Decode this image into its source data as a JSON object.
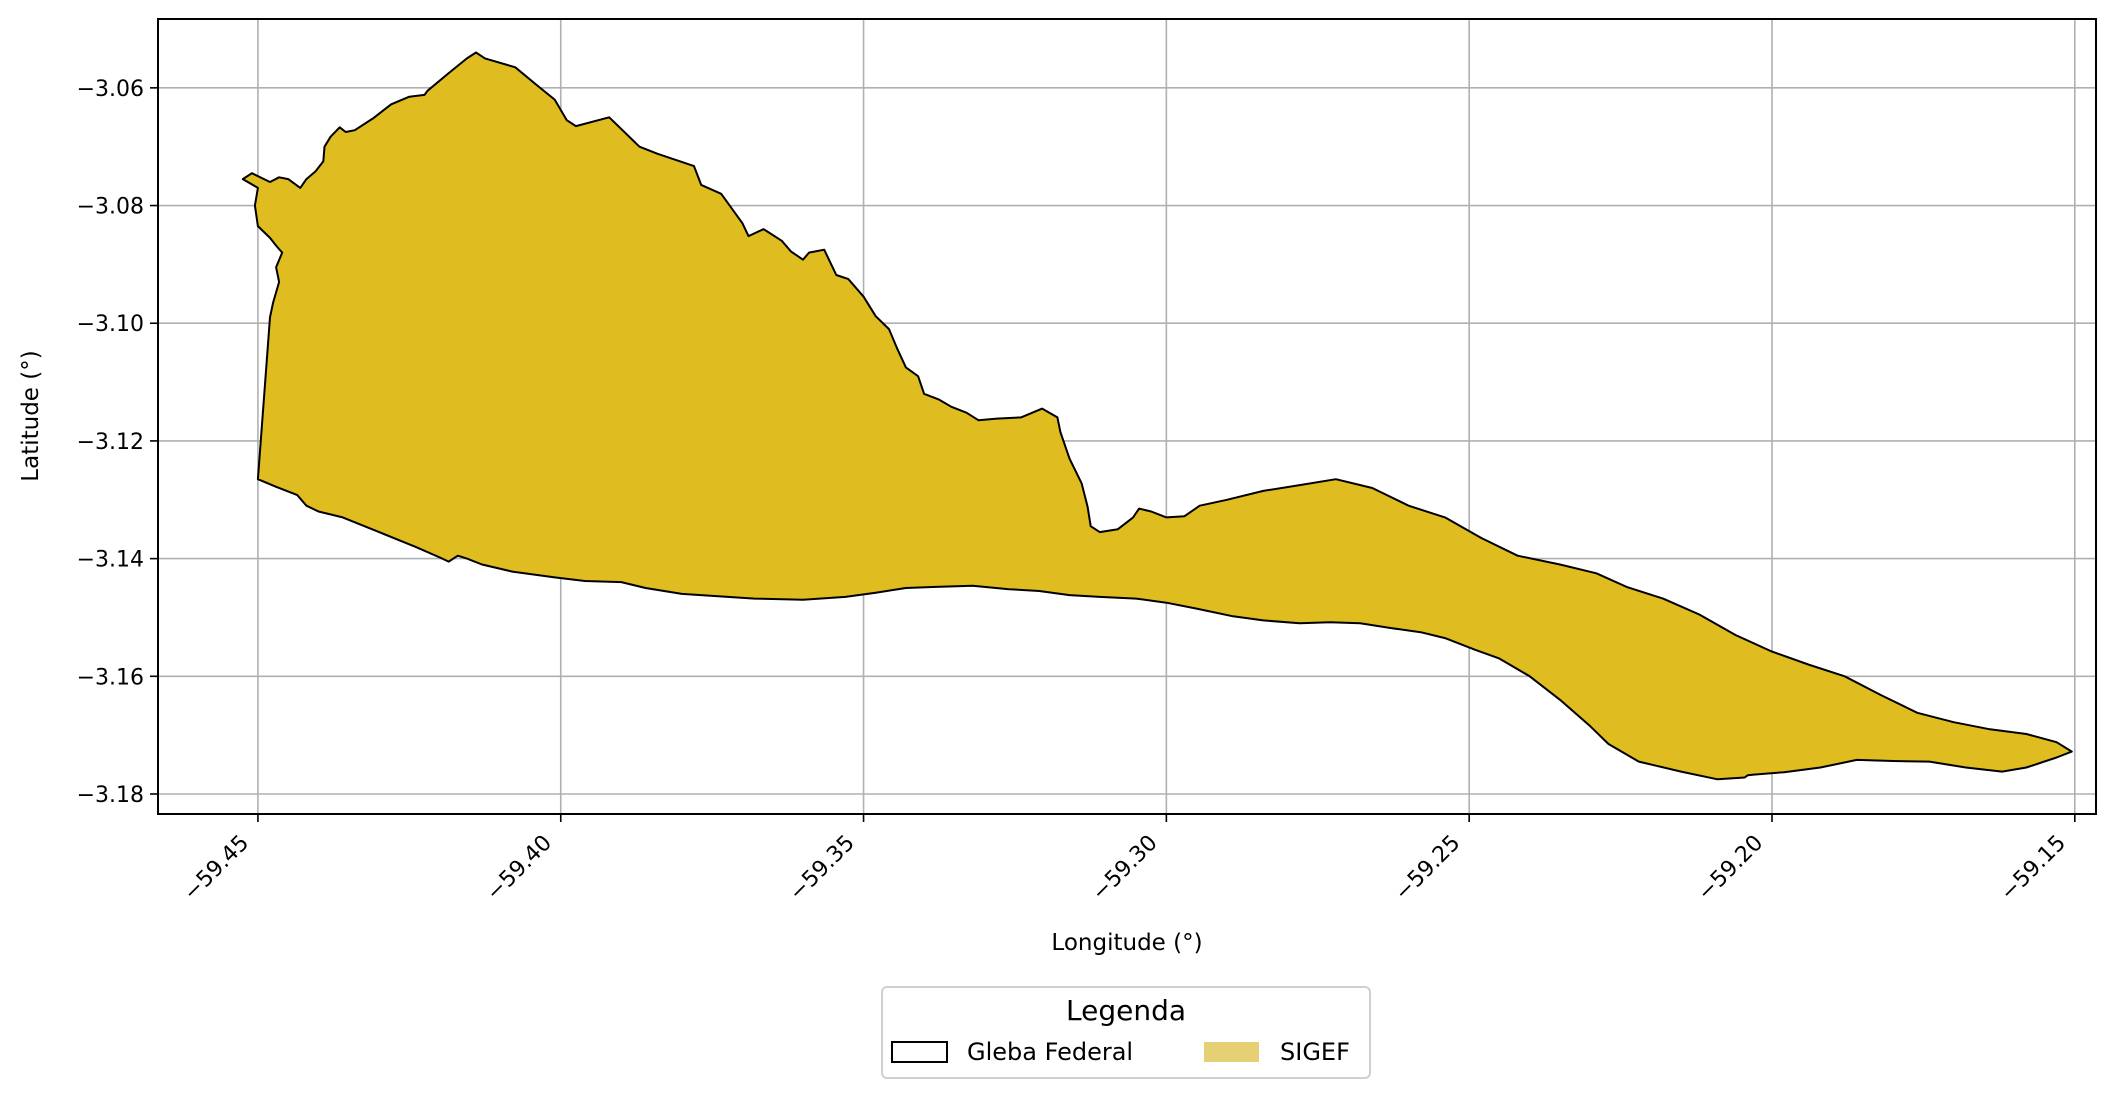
{
  "chart_data": {
    "type": "map",
    "xlabel": "Longitude (°)",
    "ylabel": "Latitude (°)",
    "xlim": [
      -59.4665,
      -59.1465
    ],
    "ylim": [
      -3.1834,
      -3.0483
    ],
    "x_ticks": [
      -59.45,
      -59.4,
      -59.35,
      -59.3,
      -59.25,
      -59.2,
      -59.15
    ],
    "x_tick_labels": [
      "−59.45",
      "−59.40",
      "−59.35",
      "−59.30",
      "−59.25",
      "−59.20",
      "−59.15"
    ],
    "y_ticks": [
      -3.06,
      -3.08,
      -3.1,
      -3.12,
      -3.14,
      -3.16,
      -3.18
    ],
    "y_tick_labels": [
      "−3.06",
      "−3.08",
      "−3.10",
      "−3.12",
      "−3.14",
      "−3.16",
      "−3.18"
    ],
    "grid": true,
    "legend": {
      "title": "Legenda",
      "placement": "bottom-center",
      "entries": [
        {
          "label": "Gleba Federal",
          "style": "outline",
          "edge_color": "#000000",
          "fill": "none"
        },
        {
          "label": "SIGEF",
          "style": "fill",
          "fill": "#e5d173"
        }
      ]
    },
    "series": [
      {
        "name": "SIGEF",
        "fill": "#dfbc1f",
        "edge": "#000000",
        "polygon": [
          [
            -59.4525,
            -3.0755
          ],
          [
            -59.451,
            -3.0745
          ],
          [
            -59.448,
            -3.076
          ],
          [
            -59.4465,
            -3.0752
          ],
          [
            -59.445,
            -3.0755
          ],
          [
            -59.443,
            -3.077
          ],
          [
            -59.442,
            -3.0755
          ],
          [
            -59.4405,
            -3.0742
          ],
          [
            -59.4392,
            -3.0725
          ],
          [
            -59.439,
            -3.07
          ],
          [
            -59.438,
            -3.0683
          ],
          [
            -59.4365,
            -3.0667
          ],
          [
            -59.4355,
            -3.0675
          ],
          [
            -59.434,
            -3.0672
          ],
          [
            -59.431,
            -3.0652
          ],
          [
            -59.428,
            -3.0628
          ],
          [
            -59.425,
            -3.0615
          ],
          [
            -59.4225,
            -3.0612
          ],
          [
            -59.422,
            -3.0605
          ],
          [
            -59.4185,
            -3.0575
          ],
          [
            -59.4155,
            -3.055
          ],
          [
            -59.414,
            -3.054
          ],
          [
            -59.4125,
            -3.055
          ],
          [
            -59.4075,
            -3.0565
          ],
          [
            -59.404,
            -3.0595
          ],
          [
            -59.401,
            -3.062
          ],
          [
            -59.399,
            -3.0655
          ],
          [
            -59.3975,
            -3.0665
          ],
          [
            -59.392,
            -3.065
          ],
          [
            -59.387,
            -3.07
          ],
          [
            -59.384,
            -3.0712
          ],
          [
            -59.378,
            -3.0733
          ],
          [
            -59.3768,
            -3.0765
          ],
          [
            -59.3735,
            -3.078
          ],
          [
            -59.37,
            -3.083
          ],
          [
            -59.369,
            -3.0852
          ],
          [
            -59.3665,
            -3.084
          ],
          [
            -59.3635,
            -3.086
          ],
          [
            -59.362,
            -3.0878
          ],
          [
            -59.36,
            -3.0892
          ],
          [
            -59.359,
            -3.088
          ],
          [
            -59.3565,
            -3.0875
          ],
          [
            -59.3545,
            -3.0918
          ],
          [
            -59.3525,
            -3.0925
          ],
          [
            -59.35,
            -3.0955
          ],
          [
            -59.348,
            -3.0988
          ],
          [
            -59.3458,
            -3.101
          ],
          [
            -59.3445,
            -3.1042
          ],
          [
            -59.343,
            -3.1075
          ],
          [
            -59.341,
            -3.109
          ],
          [
            -59.34,
            -3.112
          ],
          [
            -59.3375,
            -3.113
          ],
          [
            -59.3355,
            -3.1142
          ],
          [
            -59.333,
            -3.1152
          ],
          [
            -59.331,
            -3.1165
          ],
          [
            -59.328,
            -3.1162
          ],
          [
            -59.324,
            -3.116
          ],
          [
            -59.3205,
            -3.1145
          ],
          [
            -59.318,
            -3.116
          ],
          [
            -59.3175,
            -3.1185
          ],
          [
            -59.316,
            -3.123
          ],
          [
            -59.314,
            -3.1272
          ],
          [
            -59.313,
            -3.1312
          ],
          [
            -59.3125,
            -3.1345
          ],
          [
            -59.311,
            -3.1355
          ],
          [
            -59.308,
            -3.135
          ],
          [
            -59.3055,
            -3.133
          ],
          [
            -59.3045,
            -3.1315
          ],
          [
            -59.3025,
            -3.132
          ],
          [
            -59.3,
            -3.133
          ],
          [
            -59.297,
            -3.1328
          ],
          [
            -59.2945,
            -3.131
          ],
          [
            -59.29,
            -3.13
          ],
          [
            -59.284,
            -3.1285
          ],
          [
            -59.278,
            -3.1275
          ],
          [
            -59.272,
            -3.1265
          ],
          [
            -59.266,
            -3.128
          ],
          [
            -59.26,
            -3.131
          ],
          [
            -59.254,
            -3.133
          ],
          [
            -59.248,
            -3.1365
          ],
          [
            -59.242,
            -3.1395
          ],
          [
            -59.235,
            -3.141
          ],
          [
            -59.229,
            -3.1425
          ],
          [
            -59.224,
            -3.1448
          ],
          [
            -59.218,
            -3.1468
          ],
          [
            -59.212,
            -3.1495
          ],
          [
            -59.206,
            -3.153
          ],
          [
            -59.2,
            -3.1558
          ],
          [
            -59.194,
            -3.158
          ],
          [
            -59.188,
            -3.16
          ],
          [
            -59.182,
            -3.1632
          ],
          [
            -59.176,
            -3.1662
          ],
          [
            -59.17,
            -3.1678
          ],
          [
            -59.164,
            -3.169
          ],
          [
            -59.158,
            -3.1698
          ],
          [
            -59.153,
            -3.1712
          ],
          [
            -59.1505,
            -3.1728
          ],
          [
            -59.153,
            -3.1738
          ],
          [
            -59.158,
            -3.1755
          ],
          [
            -59.162,
            -3.1762
          ],
          [
            -59.168,
            -3.1755
          ],
          [
            -59.174,
            -3.1745
          ],
          [
            -59.18,
            -3.1744
          ],
          [
            -59.186,
            -3.1742
          ],
          [
            -59.192,
            -3.1755
          ],
          [
            -59.198,
            -3.1763
          ],
          [
            -59.203,
            -3.1767
          ],
          [
            -59.204,
            -3.1768
          ],
          [
            -59.2045,
            -3.1772
          ],
          [
            -59.209,
            -3.1775
          ],
          [
            -59.215,
            -3.1762
          ],
          [
            -59.222,
            -3.1745
          ],
          [
            -59.227,
            -3.1715
          ],
          [
            -59.23,
            -3.1685
          ],
          [
            -59.235,
            -3.164
          ],
          [
            -59.24,
            -3.16
          ],
          [
            -59.245,
            -3.157
          ],
          [
            -59.249,
            -3.1555
          ],
          [
            -59.254,
            -3.1535
          ],
          [
            -59.258,
            -3.1525
          ],
          [
            -59.263,
            -3.1518
          ],
          [
            -59.268,
            -3.151
          ],
          [
            -59.273,
            -3.1508
          ],
          [
            -59.278,
            -3.151
          ],
          [
            -59.284,
            -3.1505
          ],
          [
            -59.289,
            -3.1498
          ],
          [
            -59.295,
            -3.1485
          ],
          [
            -59.3,
            -3.1475
          ],
          [
            -59.305,
            -3.1468
          ],
          [
            -59.311,
            -3.1465
          ],
          [
            -59.316,
            -3.1462
          ],
          [
            -59.321,
            -3.1455
          ],
          [
            -59.326,
            -3.1452
          ],
          [
            -59.332,
            -3.1446
          ],
          [
            -59.338,
            -3.1448
          ],
          [
            -59.343,
            -3.145
          ],
          [
            -59.348,
            -3.1458
          ],
          [
            -59.353,
            -3.1465
          ],
          [
            -59.36,
            -3.147
          ],
          [
            -59.368,
            -3.1468
          ],
          [
            -59.374,
            -3.1464
          ],
          [
            -59.38,
            -3.146
          ],
          [
            -59.386,
            -3.145
          ],
          [
            -59.39,
            -3.144
          ],
          [
            -59.396,
            -3.1438
          ],
          [
            -59.401,
            -3.1432
          ],
          [
            -59.408,
            -3.1422
          ],
          [
            -59.413,
            -3.141
          ],
          [
            -59.4155,
            -3.14
          ],
          [
            -59.417,
            -3.1395
          ],
          [
            -59.4185,
            -3.1405
          ],
          [
            -59.42,
            -3.1398
          ],
          [
            -59.424,
            -3.138
          ],
          [
            -59.43,
            -3.1355
          ],
          [
            -59.436,
            -3.133
          ],
          [
            -59.44,
            -3.132
          ],
          [
            -59.442,
            -3.131
          ],
          [
            -59.4435,
            -3.1292
          ],
          [
            -59.447,
            -3.1278
          ],
          [
            -59.45,
            -3.1265
          ],
          [
            -59.448,
            -3.099
          ],
          [
            -59.4475,
            -3.0965
          ],
          [
            -59.4465,
            -3.093
          ],
          [
            -59.447,
            -3.0905
          ],
          [
            -59.446,
            -3.088
          ],
          [
            -59.447,
            -3.0868
          ],
          [
            -59.448,
            -3.0855
          ],
          [
            -59.45,
            -3.0835
          ],
          [
            -59.4505,
            -3.08
          ],
          [
            -59.45,
            -3.077
          ]
        ]
      }
    ]
  }
}
